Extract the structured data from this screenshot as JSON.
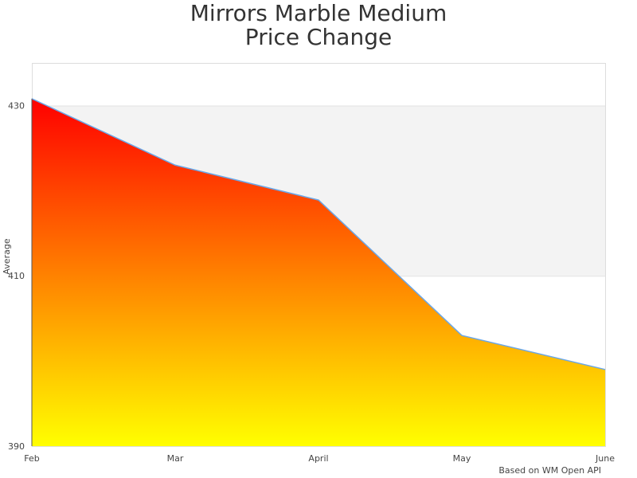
{
  "chart_data": {
    "type": "area",
    "title_line1": "Mirrors Marble Medium",
    "title_line2": "Price Change",
    "xlabel": "",
    "ylabel": "Average",
    "categories": [
      "Feb",
      "Mar",
      "April",
      "May",
      "June"
    ],
    "values": [
      430.8,
      423.0,
      418.9,
      403.0,
      399.0
    ],
    "ylim": [
      390,
      435
    ],
    "yticks": [
      390,
      410,
      430
    ],
    "grid": true,
    "legend": "none",
    "fill_gradient": {
      "top": "#ff0000",
      "bottom": "#ffff00"
    },
    "line_color": "#6aa7e8",
    "band_color": "#f3f3f3",
    "credit": "Based on WM Open API"
  }
}
